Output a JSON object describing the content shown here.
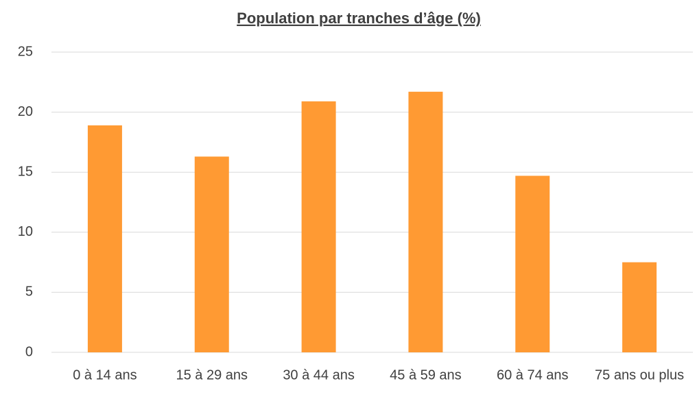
{
  "chart_data": {
    "type": "bar",
    "title": "Population par tranches d’âge (%)",
    "categories": [
      "0 à 14 ans",
      "15 à 29 ans",
      "30 à 44 ans",
      "45 à 59 ans",
      "60 à 74 ans",
      "75 ans ou plus"
    ],
    "values": [
      18.9,
      16.3,
      20.9,
      21.7,
      14.7,
      7.5
    ],
    "color": "#ff9a33",
    "ylim": [
      0,
      25
    ],
    "yticks": [
      0,
      5,
      10,
      15,
      20,
      25
    ],
    "grid": true
  }
}
